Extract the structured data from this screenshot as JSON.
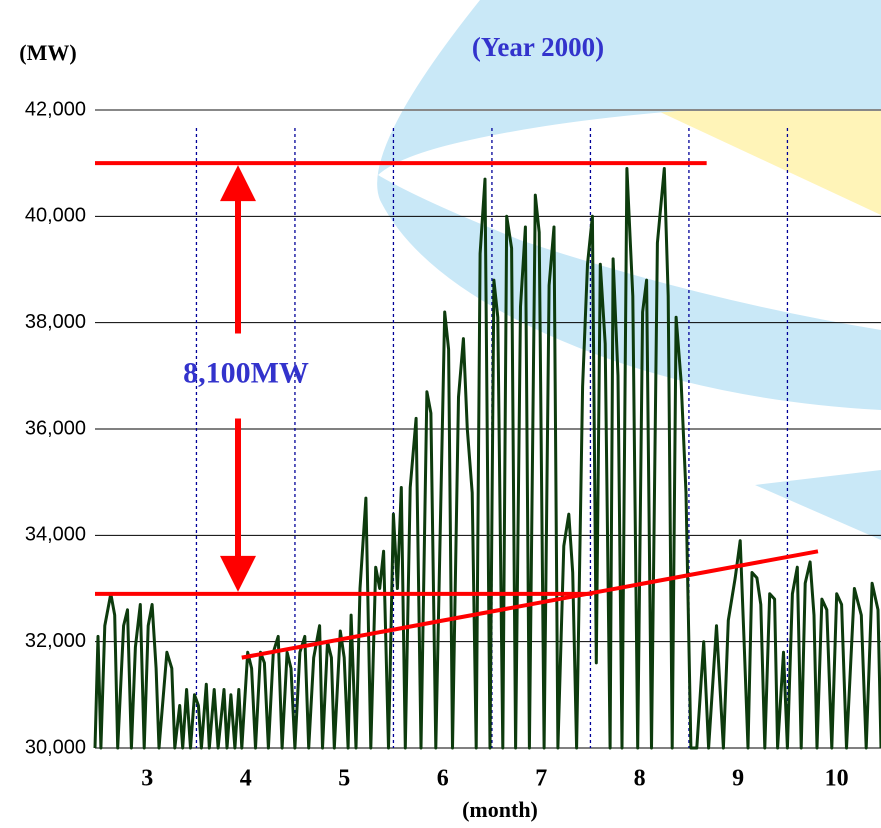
{
  "chart_data": {
    "type": "line",
    "title": "(Year 2000)",
    "y_label": "(MW)",
    "x_label": "(month)",
    "xlim": [
      2.47,
      10.45
    ],
    "xticks": [
      3,
      4,
      5,
      6,
      7,
      8,
      9,
      10
    ],
    "ylim": [
      30000,
      42000
    ],
    "yticks": [
      {
        "value": 30000,
        "label": "30,000"
      },
      {
        "value": 32000,
        "label": "32,000"
      },
      {
        "value": 34000,
        "label": "34,000"
      },
      {
        "value": 36000,
        "label": "36,000"
      },
      {
        "value": 38000,
        "label": "38,000"
      },
      {
        "value": 40000,
        "label": "40,000"
      },
      {
        "value": 42000,
        "label": "42,000"
      }
    ],
    "grid": true,
    "series": [
      {
        "color": "#0d3b0d",
        "x": [
          2.47,
          2.5,
          2.53,
          2.57,
          2.63,
          2.67,
          2.7,
          2.76,
          2.8,
          2.84,
          2.88,
          2.93,
          2.97,
          3.01,
          3.05,
          3.09,
          3.12,
          3.2,
          3.25,
          3.28,
          3.33,
          3.36,
          3.4,
          3.44,
          3.48,
          3.52,
          3.55,
          3.6,
          3.63,
          3.68,
          3.72,
          3.78,
          3.81,
          3.85,
          3.89,
          3.93,
          3.96,
          4.02,
          4.06,
          4.1,
          4.15,
          4.19,
          4.23,
          4.28,
          4.33,
          4.37,
          4.42,
          4.46,
          4.5,
          4.55,
          4.6,
          4.64,
          4.69,
          4.75,
          4.78,
          4.83,
          4.87,
          4.9,
          4.96,
          5.0,
          5.04,
          5.07,
          5.12,
          5.16,
          5.22,
          5.27,
          5.32,
          5.36,
          5.4,
          5.45,
          5.5,
          5.54,
          5.58,
          5.62,
          5.67,
          5.73,
          5.78,
          5.84,
          5.88,
          5.93,
          6.02,
          6.06,
          6.1,
          6.16,
          6.21,
          6.25,
          6.3,
          6.34,
          6.38,
          6.43,
          6.48,
          6.52,
          6.56,
          6.61,
          6.65,
          6.7,
          6.74,
          6.79,
          6.84,
          6.88,
          6.94,
          6.98,
          7.03,
          7.08,
          7.13,
          7.17,
          7.23,
          7.28,
          7.32,
          7.36,
          7.42,
          7.47,
          7.52,
          7.56,
          7.6,
          7.65,
          7.7,
          7.73,
          7.78,
          7.82,
          7.87,
          7.93,
          7.98,
          8.03,
          8.07,
          8.12,
          8.18,
          8.25,
          8.29,
          8.33,
          8.37,
          8.42,
          8.47,
          8.52,
          8.58,
          8.65,
          8.7,
          8.78,
          8.85,
          8.9,
          8.97,
          9.02,
          9.06,
          9.1,
          9.14,
          9.19,
          9.23,
          9.27,
          9.32,
          9.37,
          9.4,
          9.46,
          9.5,
          9.55,
          9.6,
          9.64,
          9.68,
          9.73,
          9.77,
          9.8,
          9.85,
          9.9,
          9.95,
          10.0,
          10.05,
          10.1,
          10.18,
          10.25,
          10.3,
          10.36,
          10.42,
          10.45
        ],
        "values": [
          30000,
          32100,
          30000,
          32300,
          32900,
          32500,
          30000,
          32300,
          32600,
          30000,
          31900,
          32700,
          30000,
          32300,
          32700,
          31500,
          30000,
          31800,
          31500,
          30000,
          30800,
          30000,
          31100,
          30000,
          31000,
          30800,
          30000,
          31200,
          30000,
          31100,
          30000,
          31100,
          30000,
          31000,
          30000,
          31100,
          30000,
          31800,
          31500,
          30000,
          31800,
          31600,
          30000,
          31800,
          32100,
          30000,
          31800,
          31500,
          30000,
          31800,
          32100,
          30000,
          31700,
          32300,
          30000,
          32000,
          31700,
          30000,
          32200,
          31700,
          30000,
          32500,
          30000,
          33000,
          34700,
          30000,
          33400,
          33000,
          33700,
          30000,
          34400,
          33000,
          34900,
          30000,
          34900,
          36200,
          30000,
          36700,
          36300,
          30000,
          38200,
          37500,
          30000,
          36600,
          37700,
          36000,
          34800,
          30000,
          39300,
          40700,
          30000,
          38800,
          38100,
          30000,
          40000,
          39400,
          30000,
          38300,
          39800,
          30000,
          40400,
          39700,
          30000,
          38700,
          39800,
          30000,
          33800,
          34400,
          33300,
          30000,
          36800,
          39100,
          40000,
          31600,
          39100,
          37600,
          30000,
          39200,
          37000,
          30000,
          40900,
          38500,
          30000,
          38200,
          38800,
          30000,
          39500,
          40900,
          38500,
          30000,
          38100,
          36900,
          34800,
          30000,
          30000,
          32000,
          30000,
          32300,
          30000,
          32400,
          33200,
          33900,
          32000,
          30000,
          33300,
          33200,
          32700,
          30000,
          32900,
          32800,
          30000,
          31800,
          30000,
          32900,
          33400,
          30000,
          33100,
          33500,
          32500,
          30000,
          32800,
          32600,
          30000,
          32900,
          32700,
          30000,
          33000,
          32500,
          30000,
          33100,
          32600,
          30000
        ]
      }
    ],
    "reference_lines": [
      {
        "y": 41000,
        "x": [
          2.47,
          8.68
        ],
        "color": "#ff0000"
      },
      {
        "y": 32900,
        "x": [
          2.47,
          7.52
        ],
        "color": "#ff0000"
      }
    ],
    "trend_line": {
      "x": [
        3.96,
        9.81
      ],
      "y": [
        31700,
        33700
      ],
      "color": "#ff0000"
    },
    "annotation": "8,100MW"
  }
}
